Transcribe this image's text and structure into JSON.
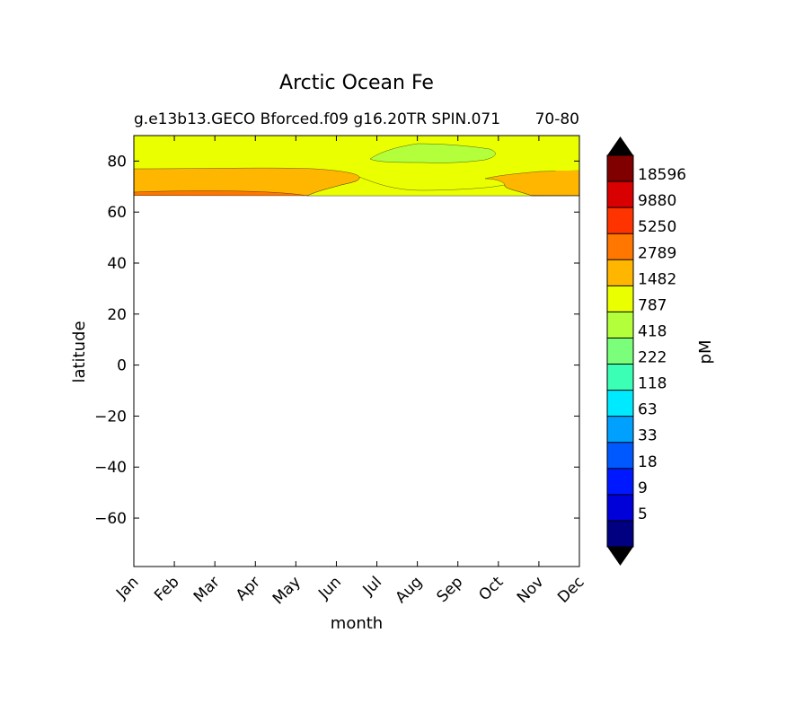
{
  "chart_data": {
    "type": "contour",
    "title": "Arctic Ocean Fe",
    "subtitle_left": "g.e13b13.GECO Bforced.f09 g16.20TR SPIN.071",
    "subtitle_right": "70-80",
    "xlabel": "month",
    "ylabel": "latitude",
    "colorbar_label": "pM",
    "x_categories": [
      "Jan",
      "Feb",
      "Mar",
      "Apr",
      "May",
      "Jun",
      "Jul",
      "Aug",
      "Sep",
      "Oct",
      "Nov",
      "Dec"
    ],
    "ylim": [
      -79,
      90
    ],
    "y_ticks": [
      "80",
      "60",
      "40",
      "20",
      "0",
      "−20",
      "−40",
      "−60"
    ],
    "y_tick_values": [
      80,
      60,
      40,
      20,
      0,
      -20,
      -40,
      -60
    ],
    "data_lat_min": 66.5,
    "colorbar": {
      "levels": [
        "18596",
        "9880",
        "5250",
        "2789",
        "1482",
        "787",
        "418",
        "222",
        "118",
        "63",
        "33",
        "18",
        "9",
        "5"
      ],
      "extend": "both",
      "band_colors": [
        "#800000",
        "#d80000",
        "#ff3300",
        "#ff7700",
        "#ffb600",
        "#eaff00",
        "#b3ff3c",
        "#7bff7b",
        "#3cffb6",
        "#00eaff",
        "#00a0ff",
        "#0058ff",
        "#0018ff",
        "#0000d8",
        "#000080"
      ],
      "extend_color": "#000000"
    },
    "regions": [
      {
        "label": "2789-5250",
        "color": "#ff7700",
        "lat_range": [
          66.5,
          68.5
        ],
        "months": "Jan-May, Nov-Dec edge"
      },
      {
        "label": "1482-2789",
        "color": "#ffb600",
        "lat_range": [
          66.5,
          77
        ],
        "months": "Jan-Jun, Oct-Dec"
      },
      {
        "label": "787-1482",
        "color": "#eaff00",
        "lat_range": [
          66.5,
          90
        ],
        "months": "Jan-Dec"
      },
      {
        "label": "418-787",
        "color": "#b3ff3c",
        "lat_range": [
          79.5,
          87
        ],
        "months": "Jul-Sep"
      }
    ]
  }
}
